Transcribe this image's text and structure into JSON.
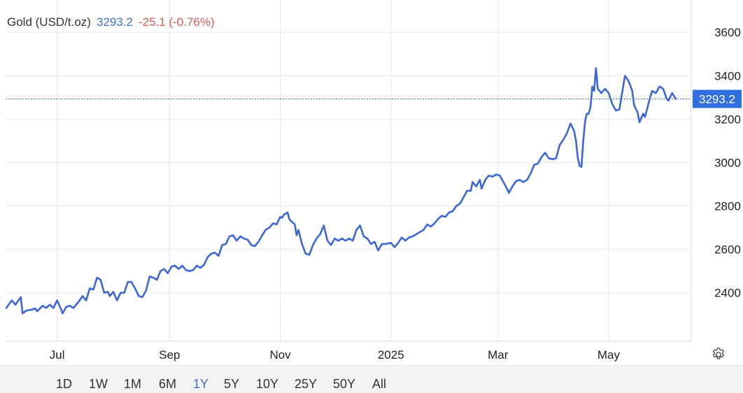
{
  "header": {
    "instrument": "Gold (USD/t.oz)",
    "price": "3293.2",
    "change": "-25.1 (-0.76%)"
  },
  "price_tag": "3293.2",
  "range_buttons": [
    "1D",
    "1W",
    "1M",
    "6M",
    "1Y",
    "5Y",
    "10Y",
    "25Y",
    "50Y",
    "All"
  ],
  "active_range": "1Y",
  "colors": {
    "line": "#3a66d8",
    "tag": "#2f6fe0",
    "change": "#e05a52",
    "grid": "#e8e8e8"
  },
  "icons": {
    "settings": "gear-icon"
  },
  "chart_data": {
    "type": "line",
    "title": "",
    "xlabel": "",
    "ylabel": "",
    "grid": true,
    "y_axis_side": "right",
    "ylim": [
      2180,
      3720
    ],
    "yticks": [
      2400,
      2600,
      2800,
      3000,
      3200,
      3400,
      3600
    ],
    "x_range": [
      "2024-06-03",
      "2025-06-24"
    ],
    "xticks": [
      {
        "label": "Jul",
        "date": "2024-07-01"
      },
      {
        "label": "Sep",
        "date": "2024-09-01"
      },
      {
        "label": "Nov",
        "date": "2024-11-01"
      },
      {
        "label": "2025",
        "date": "2025-01-01"
      },
      {
        "label": "Mar",
        "date": "2025-03-01"
      },
      {
        "label": "May",
        "date": "2025-05-01"
      }
    ],
    "last_value": 3293.2,
    "series": [
      {
        "values": [
          [
            "2024-06-03",
            2330
          ],
          [
            "2024-06-06",
            2365
          ],
          [
            "2024-06-08",
            2345
          ],
          [
            "2024-06-11",
            2380
          ],
          [
            "2024-06-12",
            2305
          ],
          [
            "2024-06-14",
            2318
          ],
          [
            "2024-06-17",
            2322
          ],
          [
            "2024-06-19",
            2328
          ],
          [
            "2024-06-20",
            2315
          ],
          [
            "2024-06-23",
            2340
          ],
          [
            "2024-06-25",
            2330
          ],
          [
            "2024-06-27",
            2345
          ],
          [
            "2024-06-29",
            2330
          ],
          [
            "2024-07-01",
            2365
          ],
          [
            "2024-07-03",
            2328
          ],
          [
            "2024-07-04",
            2305
          ],
          [
            "2024-07-06",
            2335
          ],
          [
            "2024-07-08",
            2340
          ],
          [
            "2024-07-10",
            2330
          ],
          [
            "2024-07-13",
            2360
          ],
          [
            "2024-07-15",
            2385
          ],
          [
            "2024-07-17",
            2365
          ],
          [
            "2024-07-19",
            2420
          ],
          [
            "2024-07-21",
            2415
          ],
          [
            "2024-07-23",
            2470
          ],
          [
            "2024-07-25",
            2460
          ],
          [
            "2024-07-27",
            2400
          ],
          [
            "2024-07-29",
            2405
          ],
          [
            "2024-07-30",
            2385
          ],
          [
            "2024-08-01",
            2405
          ],
          [
            "2024-08-03",
            2365
          ],
          [
            "2024-08-05",
            2400
          ],
          [
            "2024-08-07",
            2400
          ],
          [
            "2024-08-09",
            2450
          ],
          [
            "2024-08-11",
            2450
          ],
          [
            "2024-08-13",
            2420
          ],
          [
            "2024-08-15",
            2385
          ],
          [
            "2024-08-17",
            2380
          ],
          [
            "2024-08-19",
            2410
          ],
          [
            "2024-08-21",
            2475
          ],
          [
            "2024-08-23",
            2470
          ],
          [
            "2024-08-25",
            2460
          ],
          [
            "2024-08-27",
            2500
          ],
          [
            "2024-08-29",
            2510
          ],
          [
            "2024-08-31",
            2490
          ],
          [
            "2024-09-02",
            2520
          ],
          [
            "2024-09-04",
            2525
          ],
          [
            "2024-09-06",
            2510
          ],
          [
            "2024-09-08",
            2525
          ],
          [
            "2024-09-10",
            2505
          ],
          [
            "2024-09-12",
            2500
          ],
          [
            "2024-09-14",
            2505
          ],
          [
            "2024-09-16",
            2525
          ],
          [
            "2024-09-18",
            2515
          ],
          [
            "2024-09-20",
            2530
          ],
          [
            "2024-09-22",
            2565
          ],
          [
            "2024-09-24",
            2580
          ],
          [
            "2024-09-26",
            2585
          ],
          [
            "2024-09-28",
            2570
          ],
          [
            "2024-09-30",
            2620
          ],
          [
            "2024-10-02",
            2625
          ],
          [
            "2024-10-04",
            2660
          ],
          [
            "2024-10-06",
            2665
          ],
          [
            "2024-10-08",
            2640
          ],
          [
            "2024-10-10",
            2660
          ],
          [
            "2024-10-12",
            2650
          ],
          [
            "2024-10-14",
            2645
          ],
          [
            "2024-10-16",
            2620
          ],
          [
            "2024-10-18",
            2615
          ],
          [
            "2024-10-20",
            2635
          ],
          [
            "2024-10-22",
            2665
          ],
          [
            "2024-10-24",
            2690
          ],
          [
            "2024-10-26",
            2700
          ],
          [
            "2024-10-28",
            2720
          ],
          [
            "2024-10-30",
            2715
          ],
          [
            "2024-11-01",
            2750
          ],
          [
            "2024-11-02",
            2745
          ],
          [
            "2024-11-03",
            2760
          ],
          [
            "2024-11-05",
            2770
          ],
          [
            "2024-11-06",
            2740
          ],
          [
            "2024-11-07",
            2730
          ],
          [
            "2024-11-09",
            2715
          ],
          [
            "2024-11-10",
            2665
          ],
          [
            "2024-11-11",
            2690
          ],
          [
            "2024-11-13",
            2625
          ],
          [
            "2024-11-15",
            2580
          ],
          [
            "2024-11-17",
            2575
          ],
          [
            "2024-11-19",
            2620
          ],
          [
            "2024-11-21",
            2650
          ],
          [
            "2024-11-23",
            2670
          ],
          [
            "2024-11-25",
            2710
          ],
          [
            "2024-11-27",
            2640
          ],
          [
            "2024-11-29",
            2620
          ],
          [
            "2024-12-01",
            2650
          ],
          [
            "2024-12-03",
            2640
          ],
          [
            "2024-12-05",
            2650
          ],
          [
            "2024-12-07",
            2640
          ],
          [
            "2024-12-09",
            2650
          ],
          [
            "2024-12-11",
            2640
          ],
          [
            "2024-12-13",
            2690
          ],
          [
            "2024-12-15",
            2710
          ],
          [
            "2024-12-17",
            2660
          ],
          [
            "2024-12-19",
            2650
          ],
          [
            "2024-12-21",
            2625
          ],
          [
            "2024-12-23",
            2635
          ],
          [
            "2024-12-25",
            2595
          ],
          [
            "2024-12-27",
            2625
          ],
          [
            "2024-12-29",
            2625
          ],
          [
            "2025-01-01",
            2630
          ],
          [
            "2025-01-03",
            2610
          ],
          [
            "2025-01-05",
            2630
          ],
          [
            "2025-01-07",
            2655
          ],
          [
            "2025-01-09",
            2640
          ],
          [
            "2025-01-11",
            2655
          ],
          [
            "2025-01-13",
            2660
          ],
          [
            "2025-01-15",
            2670
          ],
          [
            "2025-01-17",
            2680
          ],
          [
            "2025-01-19",
            2690
          ],
          [
            "2025-01-21",
            2715
          ],
          [
            "2025-01-23",
            2705
          ],
          [
            "2025-01-25",
            2720
          ],
          [
            "2025-01-27",
            2740
          ],
          [
            "2025-01-29",
            2755
          ],
          [
            "2025-01-31",
            2750
          ],
          [
            "2025-02-02",
            2770
          ],
          [
            "2025-02-04",
            2775
          ],
          [
            "2025-02-06",
            2800
          ],
          [
            "2025-02-08",
            2810
          ],
          [
            "2025-02-10",
            2840
          ],
          [
            "2025-02-12",
            2870
          ],
          [
            "2025-02-14",
            2870
          ],
          [
            "2025-02-15",
            2910
          ],
          [
            "2025-02-17",
            2890
          ],
          [
            "2025-02-19",
            2920
          ],
          [
            "2025-02-20",
            2880
          ],
          [
            "2025-02-22",
            2920
          ],
          [
            "2025-02-24",
            2940
          ],
          [
            "2025-02-26",
            2935
          ],
          [
            "2025-02-28",
            2945
          ],
          [
            "2025-03-02",
            2940
          ],
          [
            "2025-03-04",
            2910
          ],
          [
            "2025-03-06",
            2880
          ],
          [
            "2025-03-07",
            2860
          ],
          [
            "2025-03-09",
            2890
          ],
          [
            "2025-03-11",
            2915
          ],
          [
            "2025-03-13",
            2920
          ],
          [
            "2025-03-15",
            2910
          ],
          [
            "2025-03-17",
            2920
          ],
          [
            "2025-03-19",
            2950
          ],
          [
            "2025-03-21",
            2990
          ],
          [
            "2025-03-23",
            2995
          ],
          [
            "2025-03-25",
            3025
          ],
          [
            "2025-03-27",
            3045
          ],
          [
            "2025-03-29",
            3020
          ],
          [
            "2025-03-31",
            3015
          ],
          [
            "2025-04-02",
            3020
          ],
          [
            "2025-04-04",
            3080
          ],
          [
            "2025-04-06",
            3105
          ],
          [
            "2025-04-08",
            3135
          ],
          [
            "2025-04-10",
            3180
          ],
          [
            "2025-04-12",
            3145
          ],
          [
            "2025-04-13",
            3100
          ],
          [
            "2025-04-14",
            3020
          ],
          [
            "2025-04-15",
            2985
          ],
          [
            "2025-04-16",
            2980
          ],
          [
            "2025-04-17",
            3100
          ],
          [
            "2025-04-18",
            3190
          ],
          [
            "2025-04-19",
            3225
          ],
          [
            "2025-04-20",
            3225
          ],
          [
            "2025-04-21",
            3255
          ],
          [
            "2025-04-22",
            3350
          ],
          [
            "2025-04-23",
            3330
          ],
          [
            "2025-04-24",
            3435
          ],
          [
            "2025-04-25",
            3340
          ],
          [
            "2025-04-27",
            3320
          ],
          [
            "2025-04-29",
            3340
          ],
          [
            "2025-05-01",
            3320
          ],
          [
            "2025-05-03",
            3270
          ],
          [
            "2025-05-05",
            3240
          ],
          [
            "2025-05-07",
            3245
          ],
          [
            "2025-05-08",
            3300
          ],
          [
            "2025-05-10",
            3400
          ],
          [
            "2025-05-12",
            3375
          ],
          [
            "2025-05-14",
            3330
          ],
          [
            "2025-05-15",
            3265
          ],
          [
            "2025-05-17",
            3230
          ],
          [
            "2025-05-18",
            3185
          ],
          [
            "2025-05-20",
            3225
          ],
          [
            "2025-05-21",
            3210
          ],
          [
            "2025-05-22",
            3240
          ],
          [
            "2025-05-24",
            3305
          ],
          [
            "2025-05-25",
            3330
          ],
          [
            "2025-05-27",
            3320
          ],
          [
            "2025-05-29",
            3350
          ],
          [
            "2025-05-31",
            3340
          ],
          [
            "2025-06-02",
            3295
          ],
          [
            "2025-06-03",
            3285
          ],
          [
            "2025-06-05",
            3320
          ],
          [
            "2025-06-07",
            3293.2
          ]
        ]
      }
    ]
  }
}
